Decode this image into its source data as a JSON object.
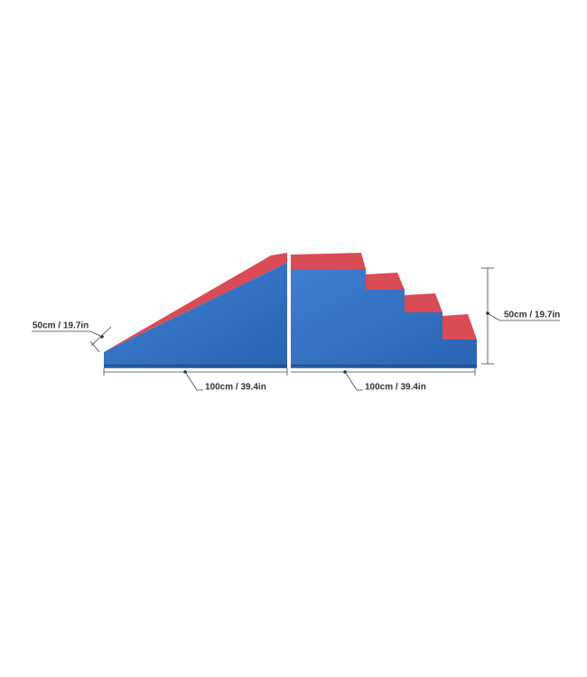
{
  "labels": {
    "depth": "50cm / 19.7in",
    "ramp_length": "100cm / 39.4in",
    "stairs_length": "100cm / 39.4in",
    "height": "50cm / 19.7in"
  }
}
